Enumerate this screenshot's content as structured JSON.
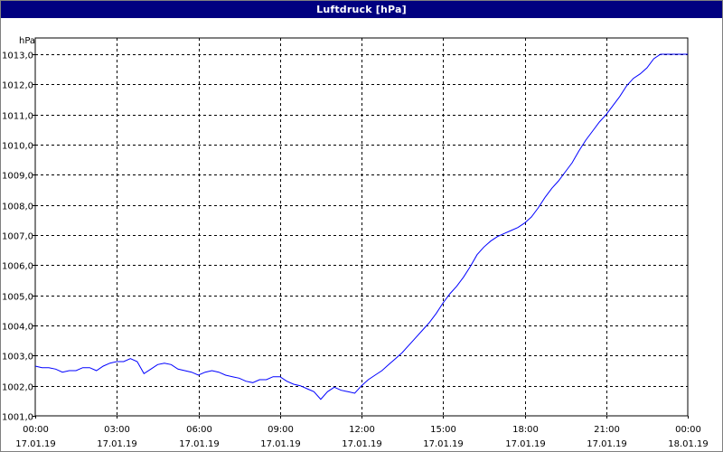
{
  "window": {
    "title": "Luftdruck [hPa]"
  },
  "chart_data": {
    "type": "line",
    "title": "Luftdruck [hPa]",
    "ylabel": "hPa",
    "xlabel": "",
    "ylim": [
      1001.0,
      1013.0
    ],
    "xlim": [
      0,
      24
    ],
    "grid": true,
    "legend": "none",
    "line_color": "#0000ff",
    "y_ticks": [
      {
        "value": 1001.0,
        "label": "1001,0"
      },
      {
        "value": 1002.0,
        "label": "1002,0"
      },
      {
        "value": 1003.0,
        "label": "1003,0"
      },
      {
        "value": 1004.0,
        "label": "1004,0"
      },
      {
        "value": 1005.0,
        "label": "1005,0"
      },
      {
        "value": 1006.0,
        "label": "1006,0"
      },
      {
        "value": 1007.0,
        "label": "1007,0"
      },
      {
        "value": 1008.0,
        "label": "1008,0"
      },
      {
        "value": 1009.0,
        "label": "1009,0"
      },
      {
        "value": 1010.0,
        "label": "1010,0"
      },
      {
        "value": 1011.0,
        "label": "1011,0"
      },
      {
        "value": 1012.0,
        "label": "1012,0"
      },
      {
        "value": 1013.0,
        "label": "1013,0"
      }
    ],
    "x_ticks": [
      {
        "value": 0,
        "time": "00:00",
        "date": "17.01.19"
      },
      {
        "value": 3,
        "time": "03:00",
        "date": "17.01.19"
      },
      {
        "value": 6,
        "time": "06:00",
        "date": "17.01.19"
      },
      {
        "value": 9,
        "time": "09:00",
        "date": "17.01.19"
      },
      {
        "value": 12,
        "time": "12:00",
        "date": "17.01.19"
      },
      {
        "value": 15,
        "time": "15:00",
        "date": "17.01.19"
      },
      {
        "value": 18,
        "time": "18:00",
        "date": "17.01.19"
      },
      {
        "value": 21,
        "time": "21:00",
        "date": "17.01.19"
      },
      {
        "value": 24,
        "time": "00:00",
        "date": "18.01.19"
      }
    ],
    "series": [
      {
        "x": [
          0,
          0.25,
          0.5,
          0.75,
          1.0,
          1.25,
          1.5,
          1.75,
          2.0,
          2.25,
          2.5,
          2.75,
          3.0,
          3.25,
          3.5,
          3.75,
          4.0,
          4.25,
          4.5,
          4.75,
          5.0,
          5.25,
          5.5,
          5.75,
          6.0,
          6.25,
          6.5,
          6.75,
          7.0,
          7.25,
          7.5,
          7.75,
          8.0,
          8.25,
          8.5,
          8.75,
          9.0,
          9.25,
          9.5,
          9.75,
          10.0,
          10.25,
          10.5,
          10.75,
          11.0,
          11.25,
          11.5,
          11.75,
          12.0,
          12.25,
          12.5,
          12.75,
          13.0,
          13.25,
          13.5,
          13.75,
          14.0,
          14.25,
          14.5,
          14.75,
          15.0,
          15.25,
          15.5,
          15.75,
          16.0,
          16.25,
          16.5,
          16.75,
          17.0,
          17.25,
          17.5,
          17.75,
          18.0,
          18.25,
          18.5,
          18.75,
          19.0,
          19.25,
          19.5,
          19.75,
          20.0,
          20.25,
          20.5,
          20.75,
          21.0,
          21.25,
          21.5,
          21.75,
          22.0,
          22.25,
          22.5,
          22.75,
          23.0,
          23.25,
          23.5,
          23.75,
          24.0
        ],
        "y": [
          1002.65,
          1002.6,
          1002.6,
          1002.55,
          1002.45,
          1002.5,
          1002.5,
          1002.6,
          1002.6,
          1002.5,
          1002.65,
          1002.75,
          1002.8,
          1002.8,
          1002.9,
          1002.8,
          1002.4,
          1002.55,
          1002.7,
          1002.75,
          1002.7,
          1002.55,
          1002.5,
          1002.45,
          1002.35,
          1002.45,
          1002.5,
          1002.45,
          1002.35,
          1002.3,
          1002.25,
          1002.15,
          1002.1,
          1002.2,
          1002.2,
          1002.3,
          1002.3,
          1002.15,
          1002.05,
          1002.0,
          1001.9,
          1001.8,
          1001.55,
          1001.8,
          1001.95,
          1001.85,
          1001.8,
          1001.75,
          1002.0,
          1002.2,
          1002.35,
          1002.5,
          1002.7,
          1002.9,
          1003.1,
          1003.35,
          1003.6,
          1003.85,
          1004.1,
          1004.4,
          1004.75,
          1005.05,
          1005.3,
          1005.6,
          1005.95,
          1006.35,
          1006.6,
          1006.8,
          1006.95,
          1007.05,
          1007.15,
          1007.25,
          1007.4,
          1007.6,
          1007.9,
          1008.25,
          1008.55,
          1008.8,
          1009.1,
          1009.4,
          1009.8,
          1010.15,
          1010.45,
          1010.75,
          1011.0,
          1011.3,
          1011.6,
          1011.95,
          1012.2,
          1012.35,
          1012.55,
          1012.85,
          1013.0,
          1013.0,
          1013.0,
          1013.0,
          1013.0
        ]
      }
    ]
  }
}
